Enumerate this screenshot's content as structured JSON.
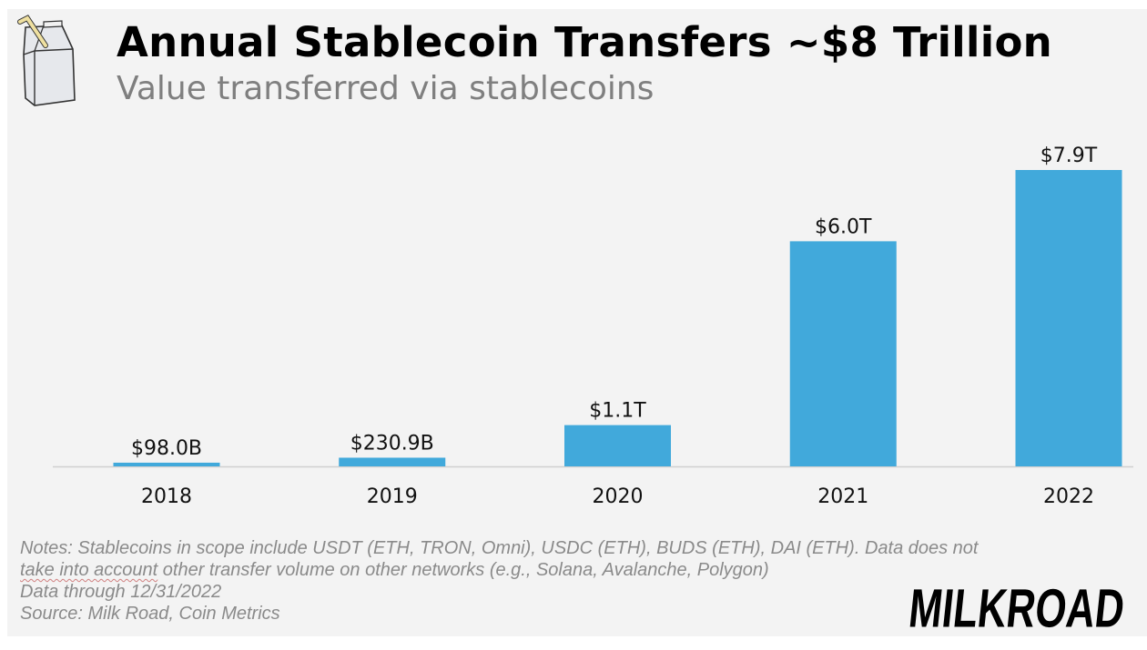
{
  "header": {
    "title": "Annual Stablecoin Transfers ~$8 Trillion",
    "subtitle": "Value transferred via stablecoins"
  },
  "chart_data": {
    "type": "bar",
    "title": "Annual Stablecoin Transfers ~$8 Trillion",
    "subtitle": "Value transferred via stablecoins",
    "categories": [
      "2018",
      "2019",
      "2020",
      "2021",
      "2022"
    ],
    "values": [
      0.098,
      0.2309,
      1.1,
      6.0,
      7.9
    ],
    "unit": "trillion USD",
    "data_labels": [
      "$98.0B",
      "$230.9B",
      "$1.1T",
      "$6.0T",
      "$7.9T"
    ],
    "ylim": [
      0,
      7.9
    ],
    "grid": false,
    "y_axis_shown": false,
    "bar_color": "#41a9db"
  },
  "footer": {
    "notes_line1": "Notes: Stablecoins in scope include USDT (ETH, TRON, Omni), USDC (ETH), BUDS (ETH), DAI (ETH). Data does not",
    "notes_line2_underlined": "take into account",
    "notes_line2_rest": " other transfer volume on other networks (e.g., Solana, Avalanche, Polygon)",
    "data_through": "Data through 12/31/2022",
    "source": "Source: Milk Road, Coin Metrics",
    "logo_text": "MILKROAD"
  },
  "icons": {
    "logo_icon": "milk-carton-icon"
  }
}
